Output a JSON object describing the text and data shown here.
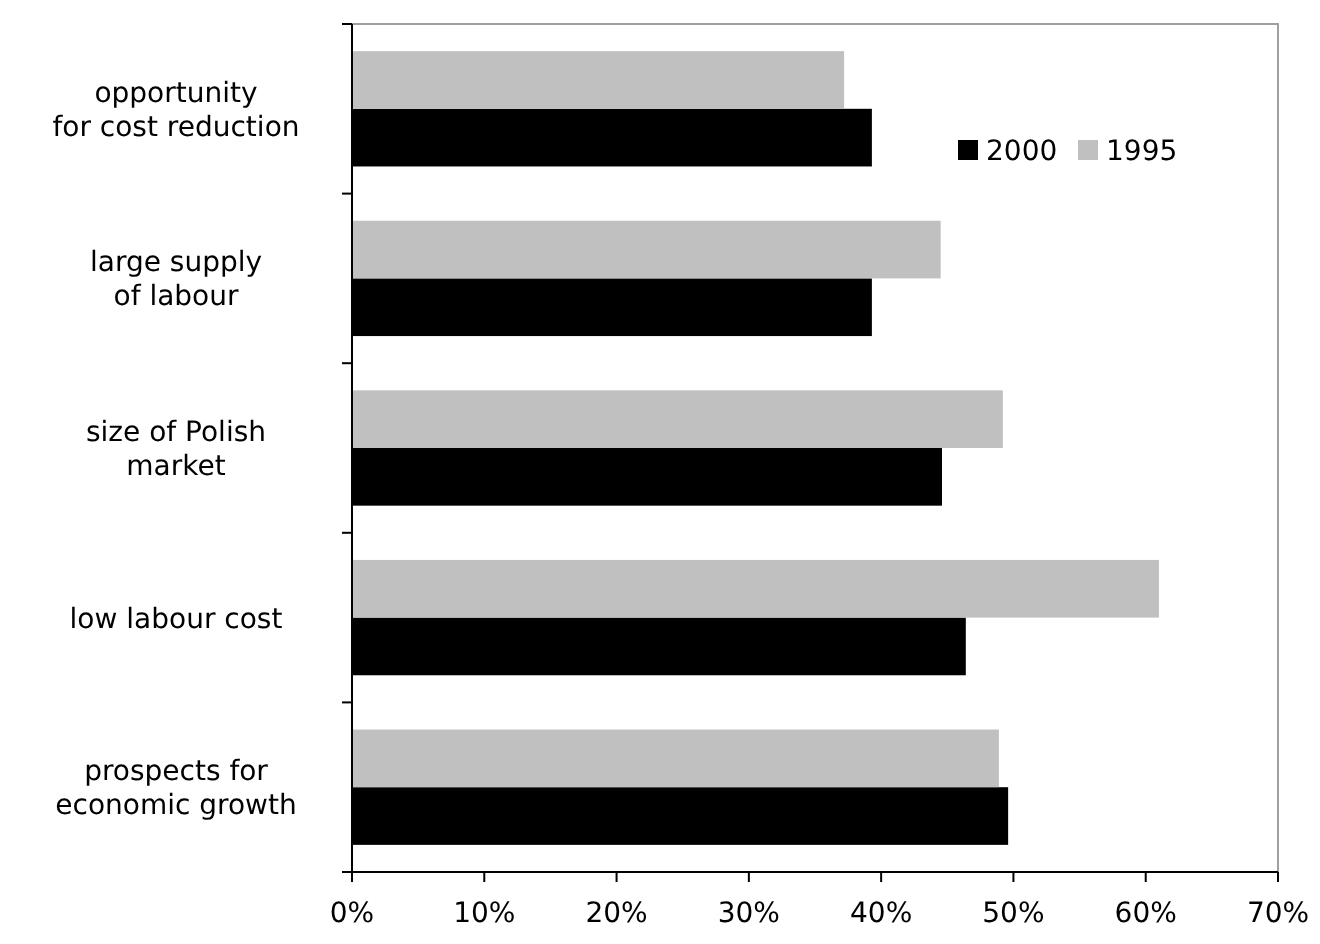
{
  "chart_data": {
    "type": "bar",
    "orientation": "horizontal",
    "categories": [
      "opportunity\nfor cost reduction",
      "large supply\nof labour",
      "size of Polish\nmarket",
      "low labour cost",
      "prospects for\neconomic growth"
    ],
    "series": [
      {
        "name": "2000",
        "color": "#000000",
        "values": [
          39.3,
          39.3,
          44.6,
          46.4,
          49.6
        ]
      },
      {
        "name": "1995",
        "color": "#c0c0c0",
        "values": [
          37.2,
          44.5,
          49.2,
          61.0,
          48.9
        ]
      }
    ],
    "xlim": [
      0,
      70
    ],
    "xticks": [
      {
        "value": 0,
        "label": "0%"
      },
      {
        "value": 10,
        "label": "10%"
      },
      {
        "value": 20,
        "label": "20%"
      },
      {
        "value": 30,
        "label": "30%"
      },
      {
        "value": 40,
        "label": "40%"
      },
      {
        "value": 50,
        "label": "50%"
      },
      {
        "value": 60,
        "label": "60%"
      },
      {
        "value": 70,
        "label": "70%"
      }
    ],
    "grid": false,
    "legend": "top right"
  }
}
